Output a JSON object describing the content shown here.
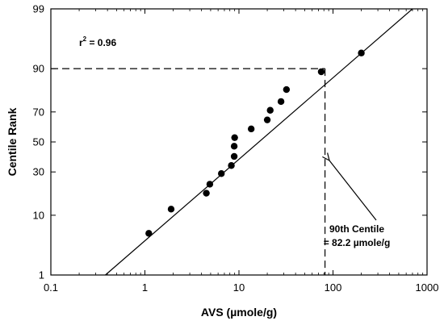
{
  "chart_data": {
    "type": "scatter",
    "xscale": "log",
    "yscale": "probability",
    "xlabel": "AVS (µmole/g)",
    "ylabel": "Centile Rank",
    "xlim": [
      0.1,
      1000
    ],
    "ylim": [
      1,
      99
    ],
    "x_ticks": [
      0.1,
      1,
      10,
      100,
      1000
    ],
    "x_tick_labels": [
      "0.1",
      "1",
      "10",
      "100",
      "1000"
    ],
    "y_ticks": [
      1,
      10,
      30,
      50,
      70,
      90,
      99
    ],
    "y_tick_labels": [
      "1",
      "10",
      "30",
      "50",
      "70",
      "90",
      "99"
    ],
    "grid": false,
    "points": [
      {
        "x": 1.1,
        "y": 5.5
      },
      {
        "x": 1.9,
        "y": 12
      },
      {
        "x": 4.5,
        "y": 18.5
      },
      {
        "x": 4.9,
        "y": 23
      },
      {
        "x": 6.5,
        "y": 29
      },
      {
        "x": 8.3,
        "y": 34
      },
      {
        "x": 8.9,
        "y": 40
      },
      {
        "x": 8.9,
        "y": 47
      },
      {
        "x": 9.0,
        "y": 53
      },
      {
        "x": 13.5,
        "y": 59
      },
      {
        "x": 20,
        "y": 65
      },
      {
        "x": 21.5,
        "y": 71
      },
      {
        "x": 28,
        "y": 76
      },
      {
        "x": 32,
        "y": 82
      },
      {
        "x": 75,
        "y": 89
      },
      {
        "x": 200,
        "y": 94
      }
    ],
    "fit_line": {
      "x": [
        0.38,
        700
      ],
      "y": [
        1,
        99
      ]
    },
    "reference": {
      "x": 82.2,
      "y": 90
    },
    "r2_prefix": "r",
    "r2_sup": "2",
    "r2_value": " = 0.96",
    "annotation_line1": "90th Centile",
    "annotation_line2": "= 82.2 µmole/g"
  }
}
